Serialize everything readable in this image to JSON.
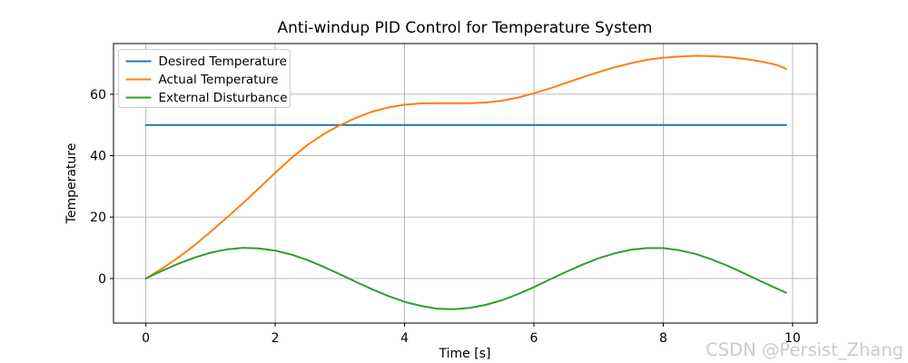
{
  "title": "Anti-windup PID Control for Temperature System",
  "watermark": "CSDN @Persist_Zhang",
  "colors": {
    "desired": "#1f77b4",
    "actual": "#ff7f0e",
    "disturbance": "#2ca02c",
    "grid": "#b0b0b0",
    "spine": "#000000",
    "legend_border": "#cccccc",
    "watermark": "#cbcbcb",
    "background": "#ffffff"
  },
  "chart_data": {
    "type": "line",
    "title": "Anti-windup PID Control for Temperature System",
    "xlabel": "Time [s]",
    "ylabel": "Temperature",
    "xlim": [
      -0.5,
      10.38
    ],
    "ylim": [
      -14.5,
      76.5
    ],
    "xticks": [
      0,
      2,
      4,
      6,
      8,
      10
    ],
    "yticks": [
      0,
      20,
      40,
      60
    ],
    "grid": true,
    "legend_position": "upper left",
    "x": [
      0,
      0.25,
      0.5,
      0.75,
      1,
      1.25,
      1.5,
      1.75,
      2,
      2.25,
      2.5,
      2.75,
      3,
      3.25,
      3.5,
      3.75,
      4,
      4.25,
      4.5,
      4.75,
      5,
      5.25,
      5.5,
      5.75,
      6,
      6.25,
      6.5,
      6.75,
      7,
      7.25,
      7.5,
      7.75,
      8,
      8.25,
      8.5,
      8.75,
      9,
      9.25,
      9.5,
      9.75,
      9.9
    ],
    "series": [
      {
        "id": "desired-temperature",
        "name": "Desired Temperature",
        "color": "#1f77b4",
        "y": [
          50,
          50,
          50,
          50,
          50,
          50,
          50,
          50,
          50,
          50,
          50,
          50,
          50,
          50,
          50,
          50,
          50,
          50,
          50,
          50,
          50,
          50,
          50,
          50,
          50,
          50,
          50,
          50,
          50,
          50,
          50,
          50,
          50,
          50,
          50,
          50,
          50,
          50,
          50,
          50,
          50
        ]
      },
      {
        "id": "actual-temperature",
        "name": "Actual Temperature",
        "color": "#ff7f0e",
        "y": [
          0,
          3.2,
          6.8,
          10.8,
          15.2,
          19.8,
          24.5,
          29.4,
          34.4,
          39.2,
          43.5,
          47.0,
          49.9,
          52.3,
          54.3,
          55.7,
          56.6,
          57.0,
          57.1,
          57.1,
          57.1,
          57.3,
          57.9,
          58.9,
          60.3,
          61.9,
          63.7,
          65.5,
          67.2,
          68.8,
          70.1,
          71.2,
          71.9,
          72.3,
          72.5,
          72.4,
          72.1,
          71.5,
          70.7,
          69.6,
          68.3
        ]
      },
      {
        "id": "external-disturbance",
        "name": "External Disturbance",
        "color": "#2ca02c",
        "y": [
          0,
          2.5,
          4.8,
          6.8,
          8.4,
          9.5,
          10.0,
          9.8,
          9.1,
          7.8,
          6.0,
          3.8,
          1.4,
          -1.1,
          -3.5,
          -5.7,
          -7.6,
          -8.9,
          -9.8,
          -10.0,
          -9.6,
          -8.6,
          -7.1,
          -5.1,
          -2.8,
          -0.3,
          2.2,
          4.5,
          6.6,
          8.2,
          9.4,
          9.9,
          9.9,
          9.2,
          8.0,
          6.2,
          4.1,
          1.7,
          -0.8,
          -3.2,
          -4.6
        ]
      }
    ]
  }
}
